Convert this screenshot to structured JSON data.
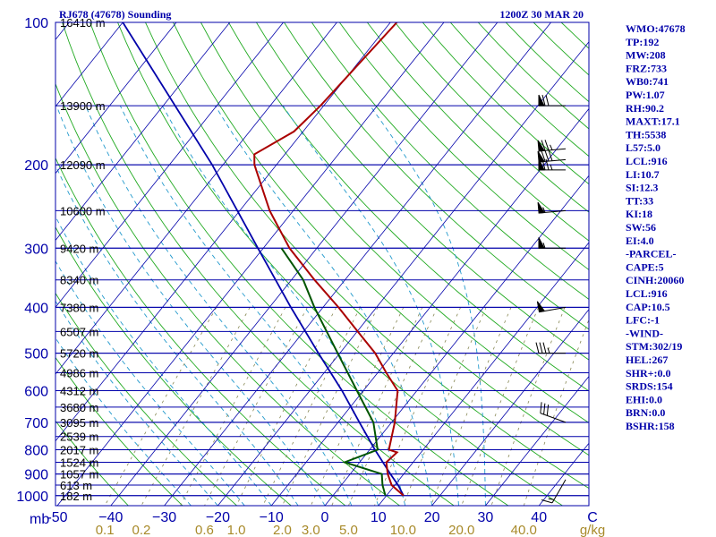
{
  "chart_data": {
    "type": "skew-t",
    "title_left": "RJ678 (47678) Sounding",
    "title_right": "1200Z 30 MAR 20",
    "pressure_ticks": [
      "100",
      "200",
      "300",
      "400",
      "500",
      "600",
      "700",
      "800",
      "900",
      "1000"
    ],
    "pressure_axis_unit": "mb",
    "height_levels": [
      {
        "p": 100,
        "label": "16410 m"
      },
      {
        "p": 150,
        "label": "13900 m"
      },
      {
        "p": 200,
        "label": "12090 m"
      },
      {
        "p": 250,
        "label": "10600 m"
      },
      {
        "p": 300,
        "label": "9420 m"
      },
      {
        "p": 350,
        "label": "8340 m"
      },
      {
        "p": 400,
        "label": "7380 m"
      },
      {
        "p": 450,
        "label": "6507 m"
      },
      {
        "p": 500,
        "label": "5720 m"
      },
      {
        "p": 550,
        "label": "4986 m"
      },
      {
        "p": 600,
        "label": "4312 m"
      },
      {
        "p": 650,
        "label": "3680 m"
      },
      {
        "p": 700,
        "label": "3095 m"
      },
      {
        "p": 750,
        "label": "2539 m"
      },
      {
        "p": 800,
        "label": "2017 m"
      },
      {
        "p": 850,
        "label": "1524 m"
      },
      {
        "p": 900,
        "label": "1057 m"
      },
      {
        "p": 950,
        "label": "613 m"
      },
      {
        "p": 1000,
        "label": "182 m"
      }
    ],
    "temperature_ticks": [
      {
        "v": -50,
        "label": "-50"
      },
      {
        "v": -40,
        "label": "−40"
      },
      {
        "v": -30,
        "label": "−30"
      },
      {
        "v": -20,
        "label": "−20"
      },
      {
        "v": -10,
        "label": "−10"
      },
      {
        "v": 0,
        "label": "0"
      },
      {
        "v": 10,
        "label": "10"
      },
      {
        "v": 20,
        "label": "20"
      },
      {
        "v": 30,
        "label": "30"
      },
      {
        "v": 40,
        "label": "40"
      },
      {
        "v": 50,
        "label": "C"
      }
    ],
    "mixing_ratio_ticks": [
      {
        "v": 0.1,
        "label": "0.1"
      },
      {
        "v": 0.2,
        "label": "0.2"
      },
      {
        "v": 0.6,
        "label": "0.6"
      },
      {
        "v": 1.0,
        "label": "1.0"
      },
      {
        "v": 2.0,
        "label": "2.0"
      },
      {
        "v": 3.0,
        "label": "3.0"
      },
      {
        "v": 5.0,
        "label": "5.0"
      },
      {
        "v": 10.0,
        "label": "10.0"
      },
      {
        "v": 20.0,
        "label": "20.0"
      },
      {
        "v": 40.0,
        "label": "40.0"
      }
    ],
    "mixing_ratio_unit": "g/kg",
    "xlim": [
      -50,
      50
    ],
    "ylim": [
      1050,
      100
    ],
    "temperature_profile": [
      {
        "p": 1000,
        "t": 13.2
      },
      {
        "p": 950,
        "t": 9.4
      },
      {
        "p": 900,
        "t": 7.0
      },
      {
        "p": 850,
        "t": 5.0
      },
      {
        "p": 810,
        "t": 5.5
      },
      {
        "p": 800,
        "t": 3.6
      },
      {
        "p": 700,
        "t": 0.6
      },
      {
        "p": 600,
        "t": -3.6
      },
      {
        "p": 550,
        "t": -8.4
      },
      {
        "p": 500,
        "t": -13.4
      },
      {
        "p": 450,
        "t": -19.9
      },
      {
        "p": 400,
        "t": -27.1
      },
      {
        "p": 350,
        "t": -35.7
      },
      {
        "p": 300,
        "t": -45.1
      },
      {
        "p": 250,
        "t": -54.4
      },
      {
        "p": 200,
        "t": -64.1
      },
      {
        "p": 190,
        "t": -65.7
      },
      {
        "p": 170,
        "t": -61.7
      },
      {
        "p": 150,
        "t": -60.6
      },
      {
        "p": 100,
        "t": -58.8
      }
    ],
    "dewpoint_profile": [
      {
        "p": 1000,
        "t": 9.8
      },
      {
        "p": 950,
        "t": 7.7
      },
      {
        "p": 900,
        "t": 5.9
      },
      {
        "p": 850,
        "t": -2.8
      },
      {
        "p": 800,
        "t": 1.5
      },
      {
        "p": 700,
        "t": -3.4
      },
      {
        "p": 600,
        "t": -11.2
      },
      {
        "p": 500,
        "t": -20.4
      },
      {
        "p": 400,
        "t": -31.6
      },
      {
        "p": 350,
        "t": -37.8
      },
      {
        "p": 300,
        "t": -46.6
      }
    ],
    "parcel_profile": [
      {
        "p": 1000,
        "t": 13.2
      },
      {
        "p": 950,
        "t": 10.6
      },
      {
        "p": 900,
        "t": 7.5
      },
      {
        "p": 800,
        "t": 1.0
      },
      {
        "p": 700,
        "t": -6.0
      },
      {
        "p": 600,
        "t": -14.0
      },
      {
        "p": 500,
        "t": -24.0
      },
      {
        "p": 400,
        "t": -36.0
      },
      {
        "p": 300,
        "t": -51.0
      },
      {
        "p": 200,
        "t": -72.0
      },
      {
        "p": 100,
        "t": -110.0
      }
    ],
    "wind_barbs": [
      {
        "p": 150,
        "dir": 270,
        "speed": 70
      },
      {
        "p": 185,
        "dir": 265,
        "speed": 75
      },
      {
        "p": 195,
        "dir": 265,
        "speed": 80
      },
      {
        "p": 205,
        "dir": 270,
        "speed": 75
      },
      {
        "p": 250,
        "dir": 265,
        "speed": 55
      },
      {
        "p": 300,
        "dir": 270,
        "speed": 55
      },
      {
        "p": 400,
        "dir": 260,
        "speed": 50
      },
      {
        "p": 500,
        "dir": 270,
        "speed": 35
      },
      {
        "p": 700,
        "dir": 290,
        "speed": 30
      },
      {
        "p": 925,
        "dir": 210,
        "speed": 15
      }
    ]
  },
  "indices": {
    "items": [
      "WMO:47678",
      "TP:192",
      "MW:208",
      "FRZ:733",
      "WB0:741",
      "PW:1.07",
      "RH:90.2",
      "MAXT:17.1",
      "TH:5538",
      "L57:5.0",
      "LCL:916",
      "LI:10.7",
      "SI:12.3",
      "TT:33",
      "KI:18",
      "SW:56",
      "EI:4.0",
      "-PARCEL-",
      "CAPE:5",
      "CINH:20060",
      "LCL:916",
      "CAP:10.5",
      "LFC:-1",
      "-WIND-",
      "STM:302/19",
      "HEL:267",
      "SHR+:0.0",
      "SRDS:154",
      "EHI:0.0",
      "BRN:0.0",
      "BSHR:158"
    ]
  },
  "colors": {
    "isobar": "#0000aa",
    "isotherm": "#0000aa",
    "dry_adiabat": "#22aa22",
    "moist_adiabat": "#2299cc",
    "mixing_ratio": "#888855",
    "temperature": "#aa0000",
    "dewpoint": "#005500",
    "parcel": "#0000aa",
    "barb": "#000000",
    "index_text": "#0000aa"
  }
}
